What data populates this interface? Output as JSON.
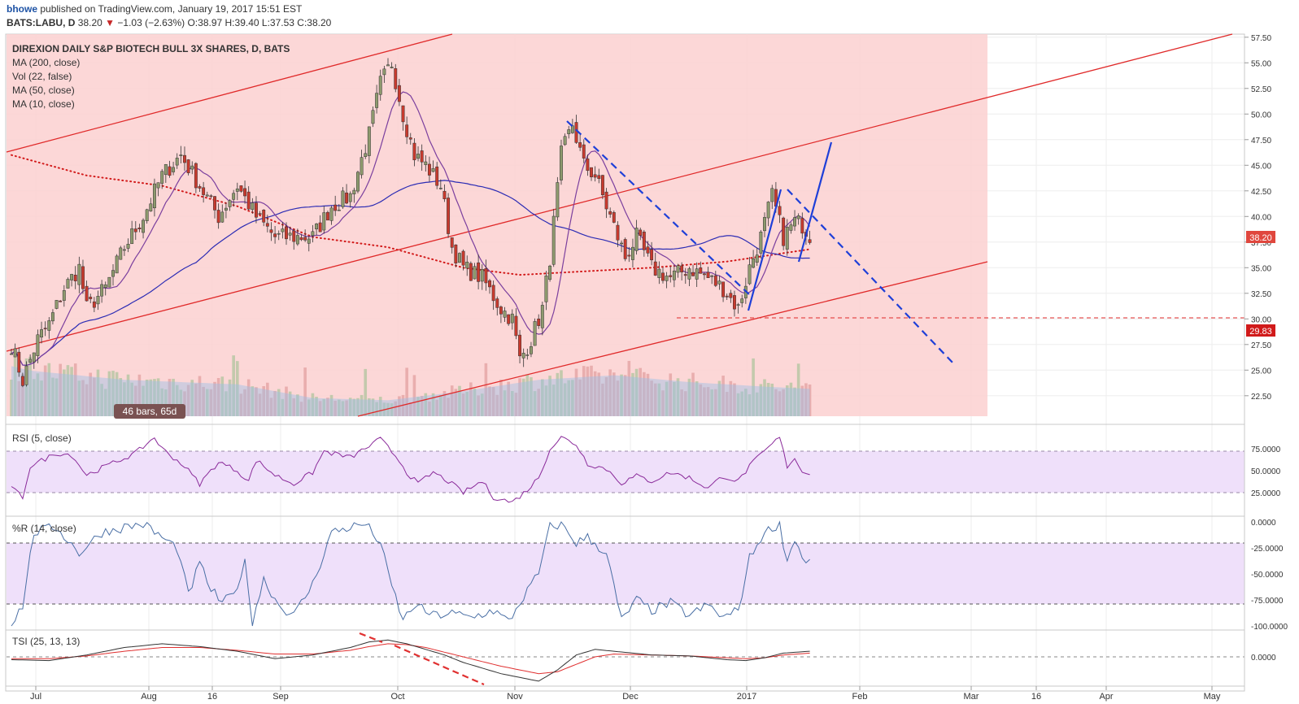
{
  "header": {
    "user": "bhowe",
    "published_text": "published on TradingView.com, January 19, 2017 15:51 EST"
  },
  "quote": {
    "symbol": "BATS:LABU, D",
    "last": "38.20",
    "change_arrow": "▼",
    "change": "−1.03 (−2.63%)",
    "open_label": "O:",
    "open": "38.97",
    "high_label": "H:",
    "high": "39.40",
    "low_label": "L:",
    "low": "37.53",
    "close_label": "C:",
    "close": "38.20"
  },
  "legend": {
    "title": "DIREXION DAILY S&P BIOTECH BULL 3X SHARES, D, BATS",
    "ma200": "MA (200, close)",
    "vol": "Vol (22, false)",
    "ma50": "MA (50, close)",
    "ma10": "MA (10, close)"
  },
  "badges": {
    "bars_range": "46 bars, 65d",
    "price_last": "38.20",
    "price_level": "29.83"
  },
  "colors": {
    "up": "#8e9a6e",
    "down": "#c83a2e",
    "ma10": "#7b3f9e",
    "ma50": "#2c2cb4",
    "ma200": "#d21a1a",
    "channel": "#e02a2a",
    "zone": "#f9c3c3",
    "trend_blue": "#1e3fd8",
    "rsi": "#8a2a9a",
    "williams": "#4a6fa5",
    "tsi": "#333333",
    "tsi_signal": "#e03030",
    "band": "#efe0fa"
  },
  "panes": {
    "rsi_label": "RSI (5, close)",
    "wr_label": "%R (14, close)",
    "tsi_label": "TSI (25, 13, 13)"
  },
  "chart_data": {
    "type": "candlestick",
    "title": "DIREXION DAILY S&P BIOTECH BULL 3X SHARES, D, BATS",
    "x_axis": {
      "labels": [
        "Jul",
        "Aug",
        "16",
        "Sep",
        "Oct",
        "Nov",
        "Dec",
        "2017",
        "Feb",
        "Mar",
        "16",
        "Apr",
        "May"
      ]
    },
    "price_axis": {
      "ticks": [
        "57.50",
        "55.00",
        "52.50",
        "50.00",
        "47.50",
        "45.00",
        "42.50",
        "40.00",
        "37.50",
        "35.00",
        "32.50",
        "30.00",
        "27.50",
        "25.00",
        "22.50"
      ],
      "range": [
        20.5,
        57.8
      ]
    },
    "rsi_axis": {
      "ticks": [
        "75.0000",
        "50.0000",
        "25.0000"
      ],
      "range": [
        0,
        100
      ],
      "bands": [
        30,
        70
      ]
    },
    "wr_axis": {
      "ticks": [
        "0.0000",
        "-25.0000",
        "-50.0000",
        "-75.0000",
        "-100.0000"
      ],
      "range": [
        -100,
        0
      ],
      "bands": [
        -80,
        -20
      ]
    },
    "tsi_axis": {
      "ticks": [
        "0.0000"
      ],
      "range": [
        -30,
        25
      ]
    },
    "price_knots": [
      [
        0,
        27.5
      ],
      [
        3,
        24
      ],
      [
        7,
        28
      ],
      [
        10,
        29.5
      ],
      [
        14,
        33
      ],
      [
        18,
        35
      ],
      [
        20,
        31
      ],
      [
        25,
        33
      ],
      [
        30,
        37
      ],
      [
        35,
        40
      ],
      [
        40,
        44
      ],
      [
        45,
        46
      ],
      [
        50,
        43
      ],
      [
        55,
        40
      ],
      [
        60,
        43
      ],
      [
        65,
        40
      ],
      [
        70,
        38
      ],
      [
        75,
        38
      ],
      [
        80,
        38
      ],
      [
        85,
        41
      ],
      [
        90,
        42
      ],
      [
        95,
        48
      ],
      [
        98,
        53
      ],
      [
        101,
        55
      ],
      [
        104,
        50
      ],
      [
        107,
        46
      ],
      [
        110,
        45
      ],
      [
        114,
        43
      ],
      [
        117,
        37
      ],
      [
        120,
        35
      ],
      [
        125,
        34
      ],
      [
        130,
        31
      ],
      [
        133,
        30
      ],
      [
        135,
        26
      ],
      [
        138,
        28
      ],
      [
        141,
        31
      ],
      [
        143,
        36
      ],
      [
        146,
        46
      ],
      [
        149,
        49
      ],
      [
        152,
        45
      ],
      [
        155,
        44
      ],
      [
        160,
        39
      ],
      [
        163,
        36
      ],
      [
        166,
        38
      ],
      [
        170,
        35
      ],
      [
        175,
        34
      ],
      [
        180,
        35
      ],
      [
        185,
        34
      ],
      [
        189,
        33
      ],
      [
        193,
        31
      ],
      [
        196,
        35
      ],
      [
        199,
        38
      ],
      [
        202,
        42
      ],
      [
        205,
        38
      ],
      [
        208,
        39.5
      ],
      [
        210,
        39.2
      ],
      [
        212,
        38.2
      ]
    ],
    "volume_knots": [
      [
        0,
        2.2
      ],
      [
        5,
        2.0
      ],
      [
        30,
        1.6
      ],
      [
        60,
        1.4
      ],
      [
        80,
        0.8
      ],
      [
        100,
        0.7
      ],
      [
        120,
        1.1
      ],
      [
        140,
        1.6
      ],
      [
        160,
        1.8
      ],
      [
        180,
        1.5
      ],
      [
        200,
        1.3
      ],
      [
        212,
        1.2
      ]
    ],
    "rsi_knots": [
      [
        0,
        30
      ],
      [
        3,
        20
      ],
      [
        5,
        55
      ],
      [
        12,
        70
      ],
      [
        16,
        68
      ],
      [
        20,
        45
      ],
      [
        25,
        55
      ],
      [
        33,
        70
      ],
      [
        38,
        88
      ],
      [
        40,
        75
      ],
      [
        46,
        55
      ],
      [
        50,
        35
      ],
      [
        55,
        60
      ],
      [
        60,
        50
      ],
      [
        63,
        38
      ],
      [
        65,
        62
      ],
      [
        70,
        45
      ],
      [
        75,
        35
      ],
      [
        80,
        48
      ],
      [
        83,
        72
      ],
      [
        90,
        65
      ],
      [
        95,
        78
      ],
      [
        98,
        86
      ],
      [
        103,
        62
      ],
      [
        105,
        48
      ],
      [
        108,
        35
      ],
      [
        112,
        48
      ],
      [
        116,
        38
      ],
      [
        120,
        25
      ],
      [
        125,
        38
      ],
      [
        128,
        20
      ],
      [
        133,
        14
      ],
      [
        137,
        28
      ],
      [
        140,
        42
      ],
      [
        143,
        75
      ],
      [
        146,
        88
      ],
      [
        150,
        80
      ],
      [
        153,
        58
      ],
      [
        158,
        52
      ],
      [
        162,
        36
      ],
      [
        166,
        44
      ],
      [
        170,
        38
      ],
      [
        175,
        48
      ],
      [
        180,
        42
      ],
      [
        185,
        30
      ],
      [
        189,
        44
      ],
      [
        193,
        38
      ],
      [
        196,
        55
      ],
      [
        199,
        68
      ],
      [
        202,
        80
      ],
      [
        204,
        88
      ],
      [
        206,
        55
      ],
      [
        208,
        65
      ],
      [
        210,
        48
      ],
      [
        212,
        48
      ]
    ],
    "wr_knots": [
      [
        0,
        -98
      ],
      [
        3,
        -80
      ],
      [
        6,
        -10
      ],
      [
        12,
        -5
      ],
      [
        18,
        -30
      ],
      [
        24,
        -10
      ],
      [
        30,
        -5
      ],
      [
        35,
        -2
      ],
      [
        40,
        -15
      ],
      [
        44,
        -25
      ],
      [
        47,
        -70
      ],
      [
        50,
        -40
      ],
      [
        53,
        -65
      ],
      [
        56,
        -78
      ],
      [
        59,
        -70
      ],
      [
        62,
        -40
      ],
      [
        64,
        -95
      ],
      [
        67,
        -55
      ],
      [
        71,
        -80
      ],
      [
        75,
        -90
      ],
      [
        80,
        -60
      ],
      [
        85,
        -10
      ],
      [
        90,
        -5
      ],
      [
        94,
        -2
      ],
      [
        98,
        -20
      ],
      [
        100,
        -50
      ],
      [
        104,
        -95
      ],
      [
        107,
        -80
      ],
      [
        112,
        -90
      ],
      [
        117,
        -88
      ],
      [
        122,
        -92
      ],
      [
        128,
        -85
      ],
      [
        132,
        -96
      ],
      [
        136,
        -72
      ],
      [
        140,
        -50
      ],
      [
        143,
        -5
      ],
      [
        146,
        -2
      ],
      [
        150,
        -20
      ],
      [
        153,
        -15
      ],
      [
        158,
        -30
      ],
      [
        162,
        -95
      ],
      [
        166,
        -75
      ],
      [
        170,
        -85
      ],
      [
        175,
        -78
      ],
      [
        180,
        -90
      ],
      [
        185,
        -80
      ],
      [
        189,
        -92
      ],
      [
        193,
        -85
      ],
      [
        196,
        -35
      ],
      [
        199,
        -15
      ],
      [
        202,
        -5
      ],
      [
        204,
        -2
      ],
      [
        206,
        -38
      ],
      [
        208,
        -15
      ],
      [
        210,
        -35
      ],
      [
        212,
        -38
      ]
    ],
    "tsi_knots": [
      [
        0,
        -3
      ],
      [
        10,
        -4
      ],
      [
        20,
        2
      ],
      [
        30,
        10
      ],
      [
        40,
        14
      ],
      [
        50,
        11
      ],
      [
        60,
        6
      ],
      [
        70,
        -2
      ],
      [
        80,
        2
      ],
      [
        90,
        10
      ],
      [
        95,
        16
      ],
      [
        100,
        18
      ],
      [
        105,
        14
      ],
      [
        110,
        8
      ],
      [
        115,
        2
      ],
      [
        120,
        -6
      ],
      [
        125,
        -12
      ],
      [
        130,
        -18
      ],
      [
        135,
        -22
      ],
      [
        140,
        -26
      ],
      [
        145,
        -14
      ],
      [
        150,
        2
      ],
      [
        155,
        8
      ],
      [
        160,
        6
      ],
      [
        170,
        2
      ],
      [
        180,
        1
      ],
      [
        190,
        -3
      ],
      [
        195,
        -4
      ],
      [
        200,
        -1
      ],
      [
        205,
        4
      ],
      [
        212,
        6
      ]
    ],
    "tsi_signal_knots": [
      [
        0,
        -2
      ],
      [
        10,
        -2
      ],
      [
        20,
        1
      ],
      [
        30,
        6
      ],
      [
        40,
        10
      ],
      [
        50,
        10
      ],
      [
        60,
        7
      ],
      [
        70,
        3
      ],
      [
        80,
        3
      ],
      [
        90,
        7
      ],
      [
        95,
        11
      ],
      [
        100,
        14
      ],
      [
        105,
        13
      ],
      [
        110,
        10
      ],
      [
        115,
        5
      ],
      [
        120,
        0
      ],
      [
        125,
        -5
      ],
      [
        130,
        -10
      ],
      [
        135,
        -14
      ],
      [
        140,
        -18
      ],
      [
        145,
        -16
      ],
      [
        150,
        -8
      ],
      [
        155,
        0
      ],
      [
        160,
        3
      ],
      [
        170,
        2
      ],
      [
        180,
        1
      ],
      [
        190,
        -1
      ],
      [
        195,
        -2
      ],
      [
        200,
        -1
      ],
      [
        205,
        2
      ],
      [
        212,
        4
      ]
    ]
  }
}
